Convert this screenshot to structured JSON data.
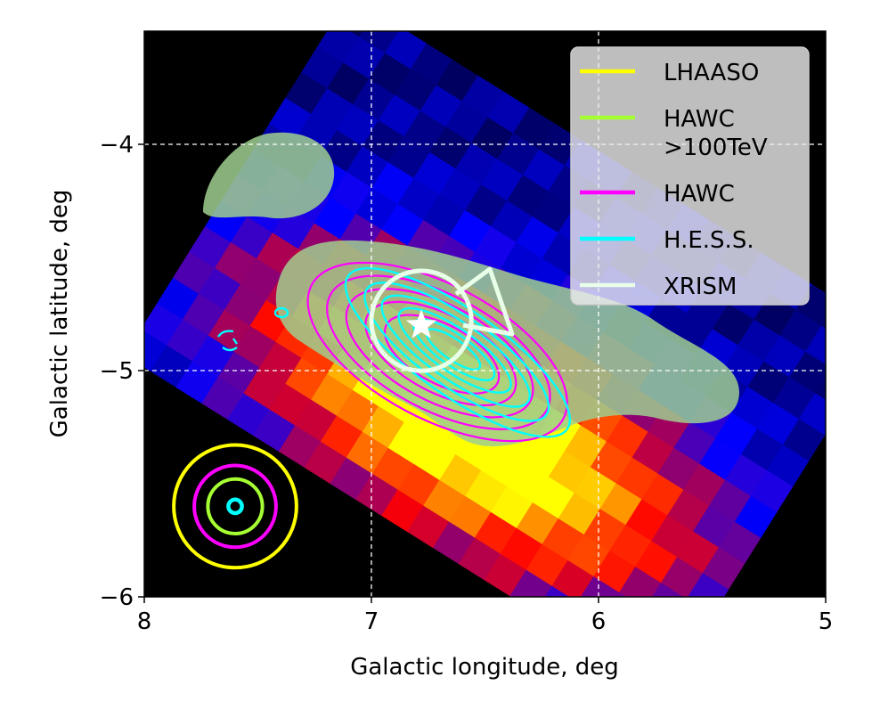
{
  "chart_data": {
    "type": "heatmap",
    "title": "",
    "xlabel": "Galactic longitude, deg",
    "ylabel": "Galactic latitude, deg",
    "xlim": [
      8,
      5
    ],
    "ylim": [
      -6,
      -3.5
    ],
    "x_ticks": [
      8,
      7,
      6,
      5
    ],
    "y_ticks": [
      -6,
      -5,
      -4
    ],
    "x_tick_labels": [
      "8",
      "7",
      "6",
      "5"
    ],
    "y_tick_labels": [
      "−6",
      "−5",
      "−4"
    ],
    "grid": "dashed white lines at l=7, l=6, b=-4, b=-5",
    "legend_placement": "top-right",
    "legend": [
      {
        "name": "LHAASO",
        "color": "#ffff00"
      },
      {
        "name": "HAWC\n>100TeV",
        "color": "#a6ff33"
      },
      {
        "name": "HAWC",
        "color": "#ff00ff"
      },
      {
        "name": "H.E.S.S.",
        "color": "#00ffff"
      },
      {
        "name": "XRISM",
        "color": "#e8ffe8"
      }
    ],
    "pulsar_marker": {
      "l": 6.78,
      "b": -4.8,
      "symbol": "star",
      "color": "#ffffff"
    },
    "psf_circles": {
      "center": {
        "l": 7.6,
        "b": -5.6
      },
      "radii_deg": [
        {
          "name": "LHAASO",
          "r": 0.27,
          "color": "#ffff00"
        },
        {
          "name": "HAWC",
          "r": 0.18,
          "color": "#ff00ff"
        },
        {
          "name": "HAWC >100TeV",
          "r": 0.12,
          "color": "#a6ff33"
        },
        {
          "name": "H.E.S.S.",
          "r": 0.03,
          "color": "#00ffff"
        }
      ]
    },
    "xrism_fov": {
      "center": {
        "l": 6.78,
        "b": -4.78
      },
      "r": 0.22,
      "color": "#e8ffe8"
    },
    "heatmap_colormap": [
      "#000000",
      "#0000ff",
      "#ff0000",
      "#ffff00"
    ],
    "heatmap_peak": {
      "l": 6.55,
      "b": -5.25
    },
    "xray_overlay": {
      "color": "#9fcf8f",
      "opacity": 0.85
    }
  }
}
